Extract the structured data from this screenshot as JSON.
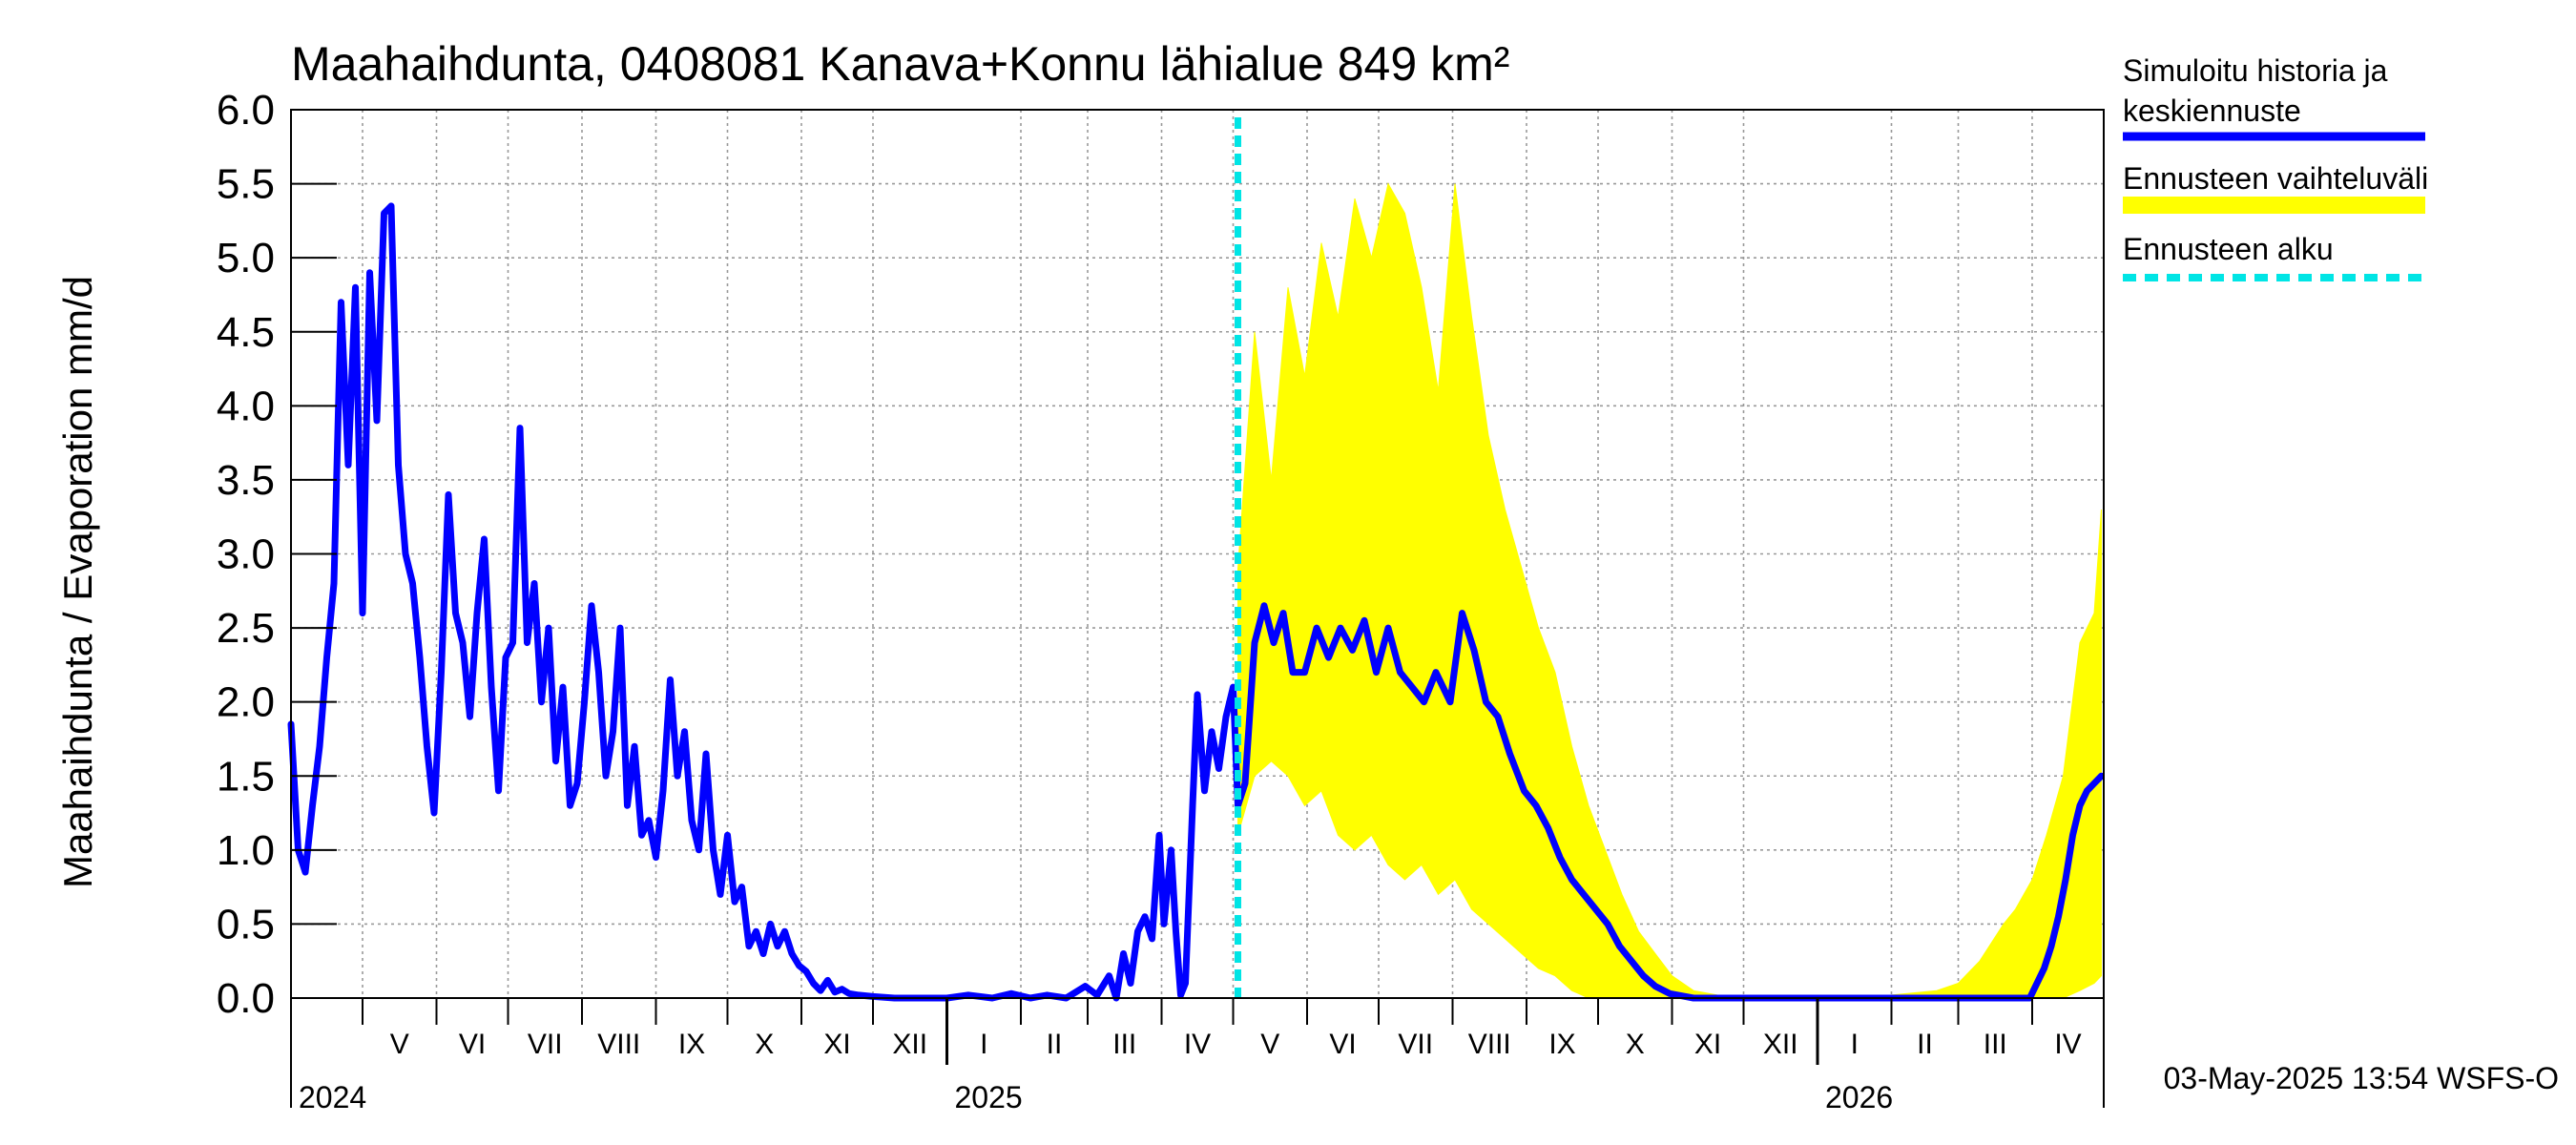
{
  "chart_data": {
    "type": "line",
    "title": "Maahaihdunta, 0408081 Kanava+Konnu lähialue 849 km²",
    "ylabel": "Maahaihdunta / Evaporation   mm/d",
    "ylim": [
      0,
      6
    ],
    "y_ticks": [
      "0.0",
      "0.5",
      "1.0",
      "1.5",
      "2.0",
      "2.5",
      "3.0",
      "3.5",
      "4.0",
      "4.5",
      "5.0",
      "5.5",
      "6.0"
    ],
    "xlim": [
      "2024-04-01",
      "2026-05-01"
    ],
    "grid": true,
    "legend_position": "right",
    "months": [
      {
        "label": "V",
        "start": "2024-05-01"
      },
      {
        "label": "VI",
        "start": "2024-06-01"
      },
      {
        "label": "VII",
        "start": "2024-07-01"
      },
      {
        "label": "VIII",
        "start": "2024-08-01"
      },
      {
        "label": "IX",
        "start": "2024-09-01"
      },
      {
        "label": "X",
        "start": "2024-10-01"
      },
      {
        "label": "XI",
        "start": "2024-11-01"
      },
      {
        "label": "XII",
        "start": "2024-12-01"
      },
      {
        "label": "I",
        "start": "2025-01-01"
      },
      {
        "label": "II",
        "start": "2025-02-01"
      },
      {
        "label": "III",
        "start": "2025-03-01"
      },
      {
        "label": "IV",
        "start": "2025-04-01"
      },
      {
        "label": "V",
        "start": "2025-05-01"
      },
      {
        "label": "VI",
        "start": "2025-06-01"
      },
      {
        "label": "VII",
        "start": "2025-07-01"
      },
      {
        "label": "VIII",
        "start": "2025-08-01"
      },
      {
        "label": "IX",
        "start": "2025-09-01"
      },
      {
        "label": "X",
        "start": "2025-10-01"
      },
      {
        "label": "XI",
        "start": "2025-11-01"
      },
      {
        "label": "XII",
        "start": "2025-12-01"
      },
      {
        "label": "I",
        "start": "2026-01-01"
      },
      {
        "label": "II",
        "start": "2026-02-01"
      },
      {
        "label": "III",
        "start": "2026-03-01"
      },
      {
        "label": "IV",
        "start": "2026-04-01"
      }
    ],
    "years": [
      {
        "label": "2024",
        "date": "2024-04-01"
      },
      {
        "label": "2025",
        "date": "2025-01-01"
      },
      {
        "label": "2026",
        "date": "2026-01-01"
      }
    ],
    "forecast_start": "2025-05-03",
    "series": [
      {
        "name": "Simuloitu historia ja keskiennuste",
        "color": "#0000ff",
        "points": [
          [
            "2024-04-01",
            1.85
          ],
          [
            "2024-04-04",
            1.0
          ],
          [
            "2024-04-07",
            0.85
          ],
          [
            "2024-04-10",
            1.3
          ],
          [
            "2024-04-13",
            1.7
          ],
          [
            "2024-04-16",
            2.3
          ],
          [
            "2024-04-19",
            2.8
          ],
          [
            "2024-04-22",
            4.7
          ],
          [
            "2024-04-25",
            3.6
          ],
          [
            "2024-04-28",
            4.8
          ],
          [
            "2024-05-01",
            2.6
          ],
          [
            "2024-05-04",
            4.9
          ],
          [
            "2024-05-07",
            3.9
          ],
          [
            "2024-05-10",
            5.3
          ],
          [
            "2024-05-13",
            5.35
          ],
          [
            "2024-05-16",
            3.6
          ],
          [
            "2024-05-19",
            3.0
          ],
          [
            "2024-05-22",
            2.8
          ],
          [
            "2024-05-25",
            2.3
          ],
          [
            "2024-05-28",
            1.7
          ],
          [
            "2024-05-31",
            1.25
          ],
          [
            "2024-06-03",
            2.2
          ],
          [
            "2024-06-06",
            3.4
          ],
          [
            "2024-06-09",
            2.6
          ],
          [
            "2024-06-12",
            2.4
          ],
          [
            "2024-06-15",
            1.9
          ],
          [
            "2024-06-18",
            2.6
          ],
          [
            "2024-06-21",
            3.1
          ],
          [
            "2024-06-24",
            2.1
          ],
          [
            "2024-06-27",
            1.4
          ],
          [
            "2024-06-30",
            2.3
          ],
          [
            "2024-07-03",
            2.4
          ],
          [
            "2024-07-06",
            3.85
          ],
          [
            "2024-07-09",
            2.4
          ],
          [
            "2024-07-12",
            2.8
          ],
          [
            "2024-07-15",
            2.0
          ],
          [
            "2024-07-18",
            2.5
          ],
          [
            "2024-07-21",
            1.6
          ],
          [
            "2024-07-24",
            2.1
          ],
          [
            "2024-07-27",
            1.3
          ],
          [
            "2024-07-30",
            1.45
          ],
          [
            "2024-08-02",
            2.0
          ],
          [
            "2024-08-05",
            2.65
          ],
          [
            "2024-08-08",
            2.2
          ],
          [
            "2024-08-11",
            1.5
          ],
          [
            "2024-08-14",
            1.8
          ],
          [
            "2024-08-17",
            2.5
          ],
          [
            "2024-08-20",
            1.3
          ],
          [
            "2024-08-23",
            1.7
          ],
          [
            "2024-08-26",
            1.1
          ],
          [
            "2024-08-29",
            1.2
          ],
          [
            "2024-09-01",
            0.95
          ],
          [
            "2024-09-04",
            1.4
          ],
          [
            "2024-09-07",
            2.15
          ],
          [
            "2024-09-10",
            1.5
          ],
          [
            "2024-09-13",
            1.8
          ],
          [
            "2024-09-16",
            1.2
          ],
          [
            "2024-09-19",
            1.0
          ],
          [
            "2024-09-22",
            1.65
          ],
          [
            "2024-09-25",
            1.0
          ],
          [
            "2024-09-28",
            0.7
          ],
          [
            "2024-10-01",
            1.1
          ],
          [
            "2024-10-04",
            0.65
          ],
          [
            "2024-10-07",
            0.75
          ],
          [
            "2024-10-10",
            0.35
          ],
          [
            "2024-10-13",
            0.45
          ],
          [
            "2024-10-16",
            0.3
          ],
          [
            "2024-10-19",
            0.5
          ],
          [
            "2024-10-22",
            0.35
          ],
          [
            "2024-10-25",
            0.45
          ],
          [
            "2024-10-28",
            0.3
          ],
          [
            "2024-10-31",
            0.22
          ],
          [
            "2024-11-03",
            0.18
          ],
          [
            "2024-11-06",
            0.1
          ],
          [
            "2024-11-09",
            0.05
          ],
          [
            "2024-11-12",
            0.12
          ],
          [
            "2024-11-15",
            0.04
          ],
          [
            "2024-11-18",
            0.06
          ],
          [
            "2024-11-21",
            0.03
          ],
          [
            "2024-11-25",
            0.02
          ],
          [
            "2024-12-01",
            0.01
          ],
          [
            "2024-12-10",
            0.0
          ],
          [
            "2024-12-20",
            0.0
          ],
          [
            "2025-01-01",
            0.0
          ],
          [
            "2025-01-10",
            0.02
          ],
          [
            "2025-01-20",
            0.0
          ],
          [
            "2025-01-28",
            0.03
          ],
          [
            "2025-02-05",
            0.0
          ],
          [
            "2025-02-12",
            0.02
          ],
          [
            "2025-02-20",
            0.0
          ],
          [
            "2025-02-28",
            0.08
          ],
          [
            "2025-03-05",
            0.02
          ],
          [
            "2025-03-10",
            0.15
          ],
          [
            "2025-03-13",
            0.0
          ],
          [
            "2025-03-16",
            0.3
          ],
          [
            "2025-03-19",
            0.1
          ],
          [
            "2025-03-22",
            0.45
          ],
          [
            "2025-03-25",
            0.55
          ],
          [
            "2025-03-28",
            0.4
          ],
          [
            "2025-03-31",
            1.1
          ],
          [
            "2025-04-02",
            0.5
          ],
          [
            "2025-04-05",
            1.0
          ],
          [
            "2025-04-07",
            0.45
          ],
          [
            "2025-04-09",
            0.02
          ],
          [
            "2025-04-11",
            0.1
          ],
          [
            "2025-04-14",
            1.3
          ],
          [
            "2025-04-16",
            2.05
          ],
          [
            "2025-04-19",
            1.4
          ],
          [
            "2025-04-22",
            1.8
          ],
          [
            "2025-04-25",
            1.55
          ],
          [
            "2025-04-28",
            1.9
          ],
          [
            "2025-05-01",
            2.1
          ],
          [
            "2025-05-03",
            1.3
          ],
          [
            "2025-05-06",
            1.45
          ],
          [
            "2025-05-10",
            2.4
          ],
          [
            "2025-05-14",
            2.65
          ],
          [
            "2025-05-18",
            2.4
          ],
          [
            "2025-05-22",
            2.6
          ],
          [
            "2025-05-26",
            2.2
          ],
          [
            "2025-05-31",
            2.2
          ],
          [
            "2025-06-05",
            2.5
          ],
          [
            "2025-06-10",
            2.3
          ],
          [
            "2025-06-15",
            2.5
          ],
          [
            "2025-06-20",
            2.35
          ],
          [
            "2025-06-25",
            2.55
          ],
          [
            "2025-06-30",
            2.2
          ],
          [
            "2025-07-05",
            2.5
          ],
          [
            "2025-07-10",
            2.2
          ],
          [
            "2025-07-15",
            2.1
          ],
          [
            "2025-07-20",
            2.0
          ],
          [
            "2025-07-25",
            2.2
          ],
          [
            "2025-07-31",
            2.0
          ],
          [
            "2025-08-05",
            2.6
          ],
          [
            "2025-08-10",
            2.35
          ],
          [
            "2025-08-15",
            2.0
          ],
          [
            "2025-08-20",
            1.9
          ],
          [
            "2025-08-25",
            1.65
          ],
          [
            "2025-08-31",
            1.4
          ],
          [
            "2025-09-05",
            1.3
          ],
          [
            "2025-09-10",
            1.15
          ],
          [
            "2025-09-15",
            0.95
          ],
          [
            "2025-09-20",
            0.8
          ],
          [
            "2025-09-25",
            0.7
          ],
          [
            "2025-09-30",
            0.6
          ],
          [
            "2025-10-05",
            0.5
          ],
          [
            "2025-10-10",
            0.35
          ],
          [
            "2025-10-15",
            0.25
          ],
          [
            "2025-10-20",
            0.15
          ],
          [
            "2025-10-25",
            0.08
          ],
          [
            "2025-10-31",
            0.03
          ],
          [
            "2025-11-10",
            0.0
          ],
          [
            "2025-12-01",
            0.0
          ],
          [
            "2026-01-01",
            0.0
          ],
          [
            "2026-02-01",
            0.0
          ],
          [
            "2026-03-01",
            0.0
          ],
          [
            "2026-03-31",
            0.0
          ],
          [
            "2026-04-03",
            0.1
          ],
          [
            "2026-04-06",
            0.2
          ],
          [
            "2026-04-09",
            0.35
          ],
          [
            "2026-04-12",
            0.55
          ],
          [
            "2026-04-15",
            0.8
          ],
          [
            "2026-04-18",
            1.1
          ],
          [
            "2026-04-21",
            1.3
          ],
          [
            "2026-04-24",
            1.4
          ],
          [
            "2026-04-27",
            1.45
          ],
          [
            "2026-04-30",
            1.5
          ]
        ]
      },
      {
        "name": "Ennusteen vaihteluväli",
        "color": "#ffff00",
        "band": [
          [
            "2025-05-03",
            1.1,
            2.9
          ],
          [
            "2025-05-10",
            1.5,
            4.5
          ],
          [
            "2025-05-17",
            1.6,
            3.5
          ],
          [
            "2025-05-24",
            1.5,
            4.8
          ],
          [
            "2025-05-31",
            1.3,
            4.2
          ],
          [
            "2025-06-07",
            1.4,
            5.1
          ],
          [
            "2025-06-14",
            1.1,
            4.6
          ],
          [
            "2025-06-21",
            1.0,
            5.4
          ],
          [
            "2025-06-28",
            1.1,
            5.0
          ],
          [
            "2025-07-05",
            0.9,
            5.5
          ],
          [
            "2025-07-12",
            0.8,
            5.3
          ],
          [
            "2025-07-19",
            0.9,
            4.8
          ],
          [
            "2025-07-26",
            0.7,
            4.1
          ],
          [
            "2025-08-02",
            0.8,
            5.5
          ],
          [
            "2025-08-09",
            0.6,
            4.6
          ],
          [
            "2025-08-16",
            0.5,
            3.8
          ],
          [
            "2025-08-23",
            0.4,
            3.3
          ],
          [
            "2025-08-30",
            0.3,
            2.9
          ],
          [
            "2025-09-06",
            0.2,
            2.5
          ],
          [
            "2025-09-13",
            0.15,
            2.2
          ],
          [
            "2025-09-20",
            0.05,
            1.7
          ],
          [
            "2025-09-27",
            0.0,
            1.3
          ],
          [
            "2025-10-04",
            0.0,
            1.0
          ],
          [
            "2025-10-11",
            0.0,
            0.7
          ],
          [
            "2025-10-18",
            0.0,
            0.45
          ],
          [
            "2025-10-25",
            0.0,
            0.3
          ],
          [
            "2025-11-01",
            0.0,
            0.15
          ],
          [
            "2025-11-10",
            0.0,
            0.05
          ],
          [
            "2025-11-20",
            0.0,
            0.02
          ],
          [
            "2026-01-15",
            0.0,
            0.0
          ],
          [
            "2026-02-01",
            0.0,
            0.02
          ],
          [
            "2026-02-20",
            0.0,
            0.05
          ],
          [
            "2026-03-01",
            0.0,
            0.1
          ],
          [
            "2026-03-10",
            0.0,
            0.25
          ],
          [
            "2026-03-20",
            0.0,
            0.5
          ],
          [
            "2026-03-25",
            0.0,
            0.6
          ],
          [
            "2026-04-01",
            0.0,
            0.8
          ],
          [
            "2026-04-07",
            0.0,
            1.1
          ],
          [
            "2026-04-14",
            0.0,
            1.5
          ],
          [
            "2026-04-21",
            0.05,
            2.4
          ],
          [
            "2026-04-27",
            0.1,
            2.6
          ],
          [
            "2026-04-30",
            0.15,
            3.3
          ]
        ]
      },
      {
        "name": "Ennusteen alku",
        "color": "#00e5e5"
      }
    ]
  },
  "legend": {
    "sim_line1": "Simuloitu historia ja",
    "sim_line2": "keskiennuste",
    "range_label": "Ennusteen vaihteluväli",
    "start_label": "Ennusteen alku"
  },
  "footer": {
    "timestamp": "03-May-2025 13:54 WSFS-O"
  }
}
